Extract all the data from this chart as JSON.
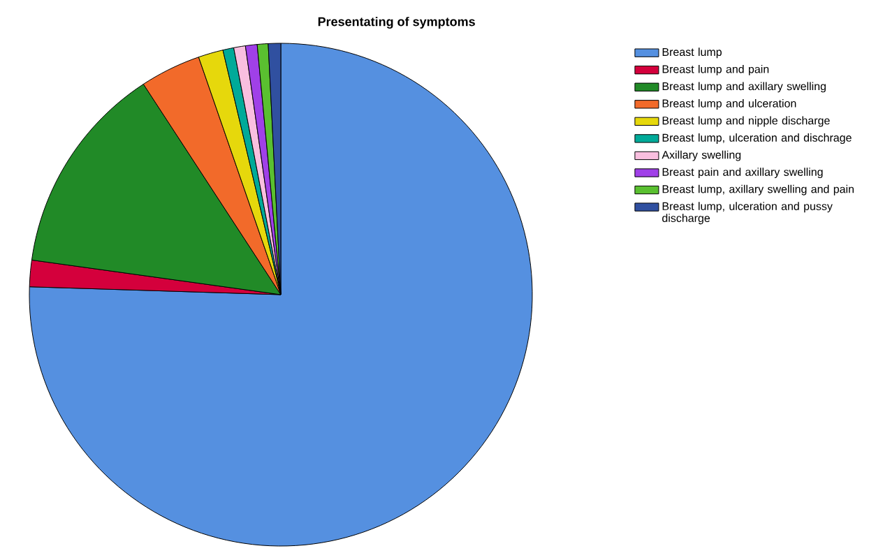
{
  "chart_data": {
    "type": "pie",
    "title": "Presentating of symptoms",
    "categories": [
      "Breast lump",
      "Breast lump and pain",
      "Breast lump and axillary swelling",
      "Breast lump and ulceration",
      "Breast lump and nipple discharge",
      "Breast lump, ulceration and dischrage",
      "Axillary swelling",
      "Breast pain and axillary swelling",
      "Breast lump, axillary swelling and pain",
      "Breast lump, ulceration and pussy discharge"
    ],
    "values": [
      75.5,
      1.7,
      13.6,
      3.9,
      1.6,
      0.7,
      0.75,
      0.75,
      0.7,
      0.8
    ],
    "colors": [
      "#5590e0",
      "#d4003c",
      "#218a27",
      "#f26a2a",
      "#e6d80c",
      "#00aa99",
      "#f9bfdf",
      "#a040e8",
      "#5ac030",
      "#3050a0"
    ],
    "legend": "right"
  }
}
